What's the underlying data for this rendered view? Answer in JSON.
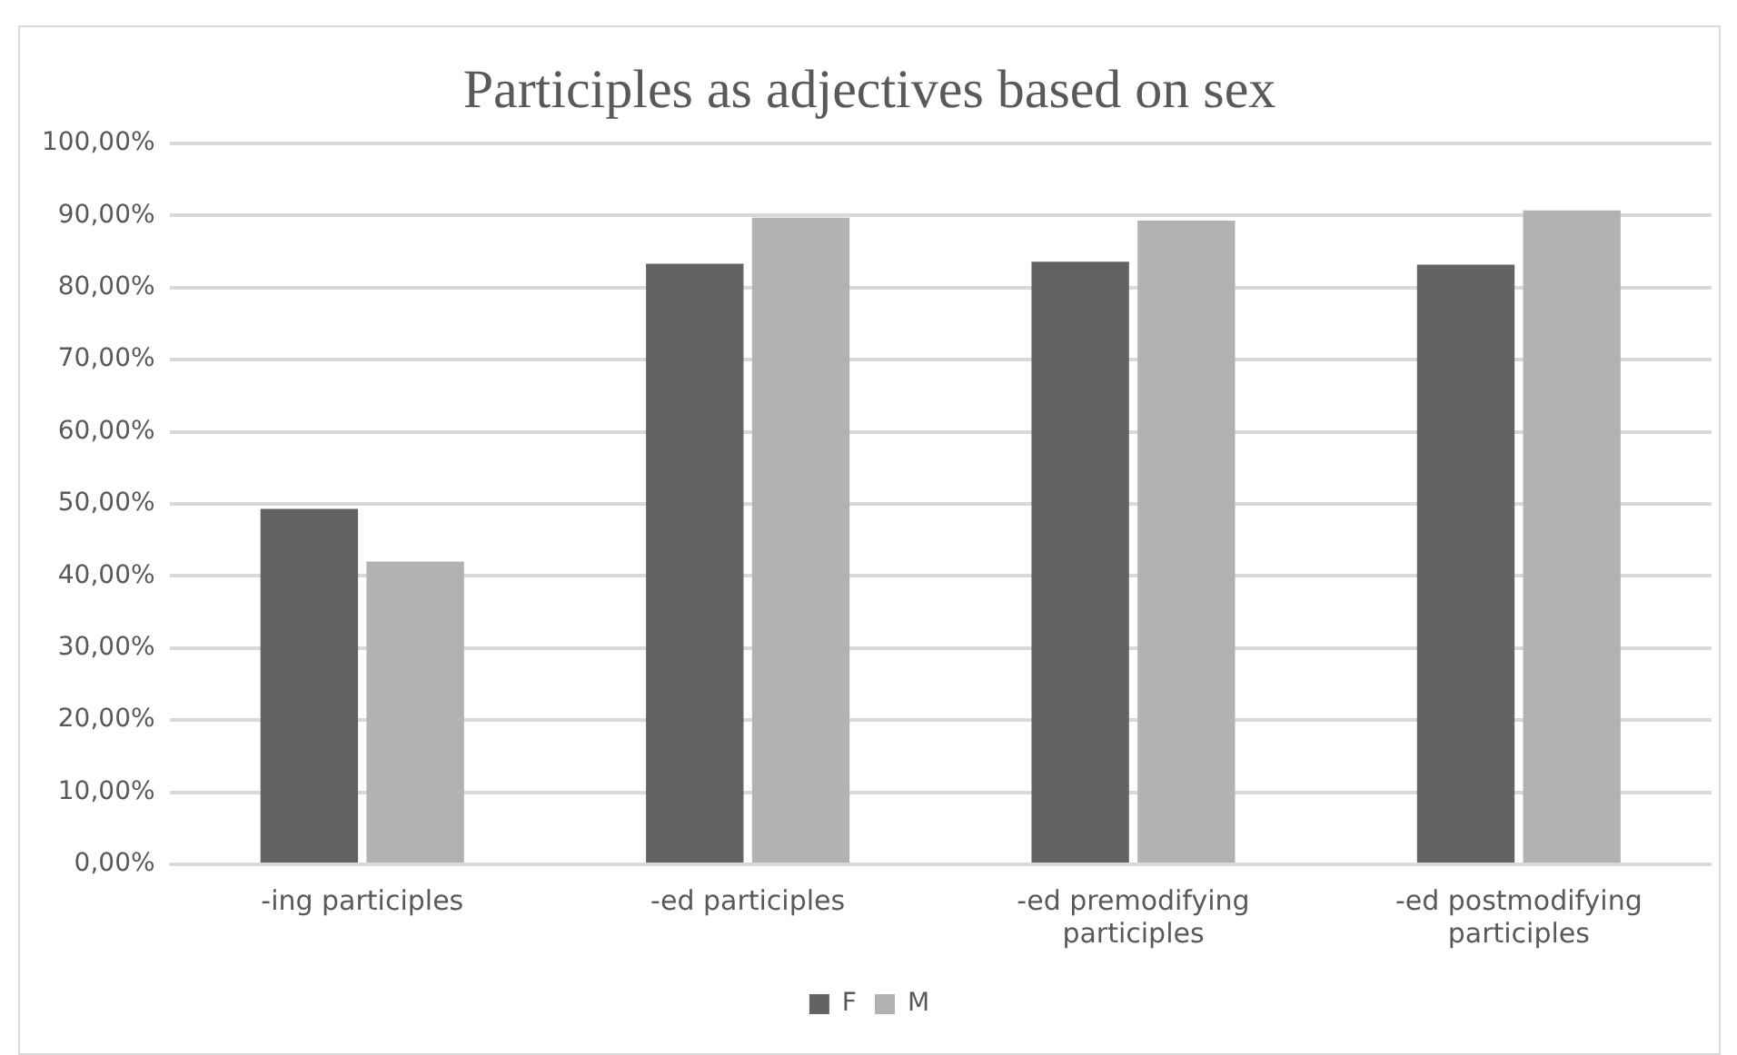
{
  "chart_data": {
    "type": "bar",
    "title": "Participles as adjectives based on sex",
    "categories": [
      "-ing participles",
      "-ed participles",
      "-ed premodifying participles",
      "-ed postmodifying participles"
    ],
    "series": [
      {
        "name": "F",
        "color": "#636363",
        "values": [
          49.3,
          83.3,
          83.6,
          83.2
        ]
      },
      {
        "name": "M",
        "color": "#b2b2b2",
        "values": [
          42.0,
          89.7,
          89.3,
          90.7
        ]
      }
    ],
    "ylim": [
      0,
      100
    ],
    "yticks": [
      {
        "value": 0,
        "label": "0,00%"
      },
      {
        "value": 10,
        "label": "10,00%"
      },
      {
        "value": 20,
        "label": "20,00%"
      },
      {
        "value": 30,
        "label": "30,00%"
      },
      {
        "value": 40,
        "label": "40,00%"
      },
      {
        "value": 50,
        "label": "50,00%"
      },
      {
        "value": 60,
        "label": "60,00%"
      },
      {
        "value": 70,
        "label": "70,00%"
      },
      {
        "value": 80,
        "label": "80,00%"
      },
      {
        "value": 90,
        "label": "90,00%"
      },
      {
        "value": 100,
        "label": "100,00%"
      }
    ],
    "grid": "y",
    "legend": "bottom"
  }
}
